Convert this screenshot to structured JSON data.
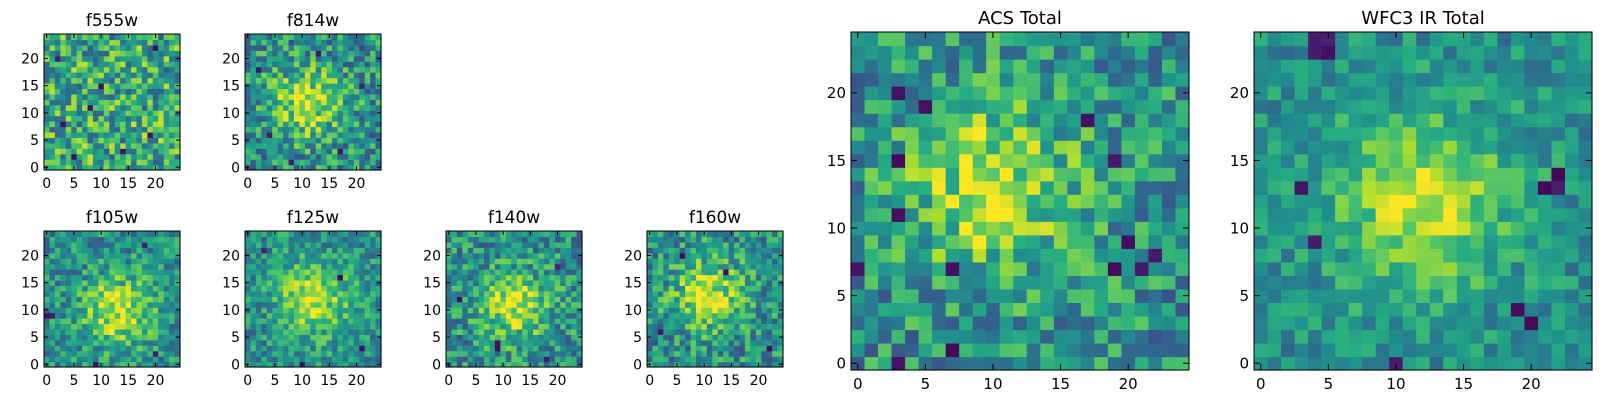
{
  "chart_data": [
    {
      "type": "heatmap",
      "title": "f555w",
      "xticks": [
        "0",
        "5",
        "10",
        "15",
        "20"
      ],
      "yticks": [
        "0",
        "5",
        "10",
        "15",
        "20"
      ],
      "xlim": [
        -0.5,
        24.5
      ],
      "ylim": [
        -0.5,
        24.5
      ],
      "grid": false,
      "colormap": "viridis",
      "peak": null,
      "noise": 0.62,
      "dark_pixels": [
        [
          5,
          2
        ],
        [
          14,
          3
        ],
        [
          3,
          8
        ],
        [
          19,
          6
        ],
        [
          10,
          15
        ],
        [
          2,
          20
        ],
        [
          20,
          22
        ],
        [
          8,
          11
        ]
      ],
      "seed": 11
    },
    {
      "type": "heatmap",
      "title": "f814w",
      "xticks": [
        "0",
        "5",
        "10",
        "15",
        "20"
      ],
      "yticks": [
        "0",
        "5",
        "10",
        "15",
        "20"
      ],
      "xlim": [
        -0.5,
        24.5
      ],
      "ylim": [
        -0.5,
        24.5
      ],
      "grid": false,
      "colormap": "viridis",
      "peak": [
        11,
        12
      ],
      "noise": 0.55,
      "dark_pixels": [
        [
          4,
          6
        ],
        [
          17,
          3
        ],
        [
          21,
          15
        ],
        [
          2,
          18
        ],
        [
          13,
          21
        ],
        [
          8,
          1
        ]
      ],
      "seed": 23
    },
    {
      "type": "heatmap",
      "title": "f105w",
      "xticks": [
        "0",
        "5",
        "10",
        "15",
        "20"
      ],
      "yticks": [
        "0",
        "5",
        "10",
        "15",
        "20"
      ],
      "xlim": [
        -0.5,
        24.5
      ],
      "ylim": [
        -0.5,
        24.5
      ],
      "grid": false,
      "colormap": "viridis",
      "peak": [
        13,
        10
      ],
      "noise": 0.45,
      "dark_pixels": [
        [
          0,
          9
        ],
        [
          1,
          9
        ],
        [
          20,
          2
        ],
        [
          9,
          0
        ],
        [
          18,
          22
        ]
      ],
      "seed": 37
    },
    {
      "type": "heatmap",
      "title": "f125w",
      "xticks": [
        "0",
        "5",
        "10",
        "15",
        "20"
      ],
      "yticks": [
        "0",
        "5",
        "10",
        "15",
        "20"
      ],
      "xlim": [
        -0.5,
        24.5
      ],
      "ylim": [
        -0.5,
        24.5
      ],
      "grid": false,
      "colormap": "viridis",
      "peak": [
        12,
        12
      ],
      "noise": 0.42,
      "dark_pixels": [
        [
          10,
          0
        ],
        [
          21,
          3
        ],
        [
          3,
          21
        ],
        [
          17,
          16
        ]
      ],
      "seed": 41
    },
    {
      "type": "heatmap",
      "title": "f140w",
      "xticks": [
        "0",
        "5",
        "10",
        "15",
        "20"
      ],
      "yticks": [
        "0",
        "5",
        "10",
        "15",
        "20"
      ],
      "xlim": [
        -0.5,
        24.5
      ],
      "ylim": [
        -0.5,
        24.5
      ],
      "grid": false,
      "colormap": "viridis",
      "peak": [
        12,
        11
      ],
      "noise": 0.5,
      "dark_pixels": [
        [
          9,
          3
        ],
        [
          9,
          4
        ],
        [
          18,
          1
        ],
        [
          2,
          12
        ],
        [
          20,
          18
        ]
      ],
      "seed": 53
    },
    {
      "type": "heatmap",
      "title": "f160w",
      "xticks": [
        "0",
        "5",
        "10",
        "15",
        "20"
      ],
      "yticks": [
        "0",
        "5",
        "10",
        "15",
        "20"
      ],
      "xlim": [
        -0.5,
        24.5
      ],
      "ylim": [
        -0.5,
        24.5
      ],
      "grid": false,
      "colormap": "viridis",
      "peak": [
        11,
        13
      ],
      "noise": 0.5,
      "dark_pixels": [
        [
          22,
          3
        ],
        [
          2,
          6
        ],
        [
          14,
          17
        ],
        [
          6,
          20
        ]
      ],
      "seed": 67
    },
    {
      "type": "heatmap",
      "title": "ACS Total",
      "xticks": [
        "0",
        "5",
        "10",
        "15",
        "20"
      ],
      "yticks": [
        "0",
        "5",
        "10",
        "15",
        "20"
      ],
      "xlim": [
        -0.5,
        24.5
      ],
      "ylim": [
        -0.5,
        24.5
      ],
      "grid": false,
      "colormap": "viridis",
      "peak": [
        10,
        13
      ],
      "noise": 0.5,
      "dark_pixels": [
        [
          3,
          0
        ],
        [
          7,
          1
        ],
        [
          3,
          11
        ],
        [
          0,
          7
        ],
        [
          7,
          7
        ],
        [
          19,
          7
        ],
        [
          21,
          7
        ],
        [
          20,
          9
        ],
        [
          19,
          15
        ],
        [
          3,
          15
        ],
        [
          3,
          20
        ],
        [
          5,
          19
        ],
        [
          17,
          18
        ],
        [
          22,
          8
        ]
      ],
      "seed": 79
    },
    {
      "type": "heatmap",
      "title": "WFC3 IR Total",
      "xticks": [
        "0",
        "5",
        "10",
        "15",
        "20"
      ],
      "yticks": [
        "0",
        "5",
        "10",
        "15",
        "20"
      ],
      "xlim": [
        -0.5,
        24.5
      ],
      "ylim": [
        -0.5,
        24.5
      ],
      "grid": false,
      "colormap": "viridis",
      "peak": [
        12,
        12
      ],
      "noise": 0.32,
      "dark_pixels": [
        [
          4,
          24
        ],
        [
          5,
          24
        ],
        [
          4,
          23
        ],
        [
          5,
          23
        ],
        [
          21,
          13
        ],
        [
          22,
          13
        ],
        [
          22,
          14
        ],
        [
          10,
          0
        ],
        [
          19,
          4
        ],
        [
          20,
          3
        ],
        [
          4,
          9
        ],
        [
          3,
          13
        ]
      ],
      "seed": 97
    }
  ]
}
